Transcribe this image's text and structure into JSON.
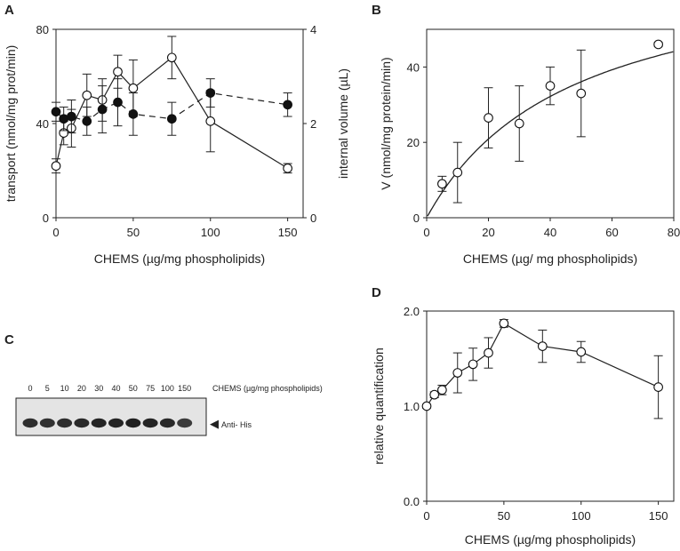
{
  "chart_data": [
    {
      "panel": "A",
      "type": "line",
      "xlabel": "CHEMS (µg/mg phospholipids)",
      "ylabel": "transport (nmol/mg prot/min)",
      "y2label": "internal volume (µL)",
      "xlim": [
        0,
        160
      ],
      "ylim": [
        0,
        80
      ],
      "y2lim": [
        0,
        4
      ],
      "xticks": [
        "0",
        "50",
        "100",
        "150"
      ],
      "yticks": [
        "0",
        "40",
        "80"
      ],
      "y2ticks": [
        "0",
        "2",
        "4"
      ],
      "series": [
        {
          "name": "transport",
          "axis": "left",
          "marker": "open",
          "linestyle": "solid",
          "x": [
            0,
            5,
            10,
            20,
            30,
            40,
            50,
            75,
            100,
            150
          ],
          "y": [
            22,
            36,
            38,
            52,
            50,
            62,
            55,
            68,
            41,
            21
          ],
          "err": [
            3,
            5,
            8,
            9,
            9,
            7,
            12,
            9,
            13,
            2
          ]
        },
        {
          "name": "internal volume",
          "axis": "right",
          "marker": "filled",
          "linestyle": "dashed",
          "x": [
            0,
            5,
            10,
            20,
            30,
            40,
            50,
            75,
            100,
            150
          ],
          "y": [
            2.25,
            2.1,
            2.15,
            2.05,
            2.3,
            2.45,
            2.2,
            2.1,
            2.65,
            2.4
          ],
          "err": [
            0.2,
            0.25,
            0.35,
            0.3,
            0.5,
            0.5,
            0.45,
            0.35,
            0.3,
            0.25
          ]
        }
      ]
    },
    {
      "panel": "B",
      "type": "scatter",
      "xlabel": "CHEMS (µg/ mg phospholipids)",
      "ylabel": "V (nmol/mg protein/min)",
      "xlim": [
        0,
        80
      ],
      "ylim": [
        0,
        50
      ],
      "xticks": [
        "0",
        "20",
        "40",
        "60",
        "80"
      ],
      "yticks": [
        "0",
        "20",
        "40"
      ],
      "fit": "Michaelis-Menten curve",
      "fit_params": {
        "Vmax": 70,
        "K": 47
      },
      "series": [
        {
          "name": "V",
          "marker": "open",
          "x": [
            5,
            10,
            20,
            30,
            40,
            50,
            75
          ],
          "y": [
            9,
            12,
            26.5,
            25,
            35,
            33,
            46
          ],
          "err": [
            2,
            8,
            8,
            10,
            5,
            11.5,
            0.5
          ]
        }
      ]
    },
    {
      "panel": "D",
      "type": "line",
      "xlabel": "CHEMS (µg/mg phospholipids)",
      "ylabel": "relative quantification",
      "xlim": [
        0,
        160
      ],
      "ylim": [
        0,
        2
      ],
      "xticks": [
        "0",
        "50",
        "100",
        "150"
      ],
      "yticks": [
        "0.0",
        "1.0",
        "2.0"
      ],
      "series": [
        {
          "name": "relative quantification",
          "marker": "open",
          "x": [
            0,
            5,
            10,
            20,
            30,
            40,
            50,
            75,
            100,
            150
          ],
          "y": [
            1.0,
            1.12,
            1.17,
            1.35,
            1.44,
            1.56,
            1.87,
            1.63,
            1.57,
            1.2
          ],
          "err": [
            0.02,
            0.03,
            0.05,
            0.21,
            0.17,
            0.16,
            0.04,
            0.17,
            0.11,
            0.33
          ]
        }
      ]
    }
  ],
  "panel_c": {
    "letter": "C",
    "lanes": [
      "0",
      "5",
      "10",
      "20",
      "30",
      "40",
      "50",
      "75",
      "100",
      "150"
    ],
    "lane_header": "CHEMS (µg/mg phospholipids)",
    "band_label": "Anti- His",
    "arrow": "◀",
    "band_intensity": [
      0.75,
      0.7,
      0.75,
      0.8,
      0.85,
      0.85,
      0.9,
      0.85,
      0.8,
      0.6
    ]
  },
  "panel_letters": {
    "a": "A",
    "b": "B",
    "d": "D"
  }
}
